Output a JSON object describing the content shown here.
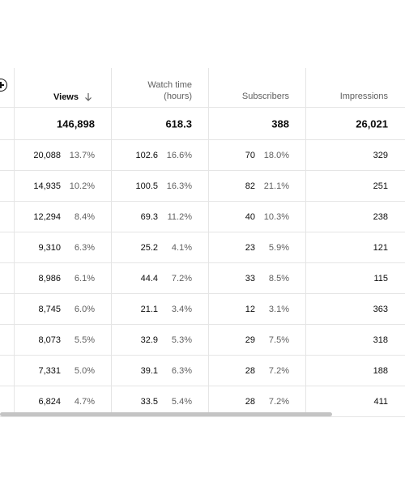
{
  "header": {
    "views_label": "Views",
    "watch_label_line1": "Watch time",
    "watch_label_line2": "(hours)",
    "subscribers_label": "Subscribers",
    "impressions_label": "Impressions"
  },
  "totals": {
    "views": "146,898",
    "watch": "618.3",
    "subscribers": "388",
    "impressions": "26,021"
  },
  "rows": [
    {
      "views": "20,088",
      "views_pct": "13.7%",
      "watch": "102.6",
      "watch_pct": "16.6%",
      "subs": "70",
      "subs_pct": "18.0%",
      "impressions": "329"
    },
    {
      "views": "14,935",
      "views_pct": "10.2%",
      "watch": "100.5",
      "watch_pct": "16.3%",
      "subs": "82",
      "subs_pct": "21.1%",
      "impressions": "251"
    },
    {
      "views": "12,294",
      "views_pct": "8.4%",
      "watch": "69.3",
      "watch_pct": "11.2%",
      "subs": "40",
      "subs_pct": "10.3%",
      "impressions": "238"
    },
    {
      "views": "9,310",
      "views_pct": "6.3%",
      "watch": "25.2",
      "watch_pct": "4.1%",
      "subs": "23",
      "subs_pct": "5.9%",
      "impressions": "121"
    },
    {
      "views": "8,986",
      "views_pct": "6.1%",
      "watch": "44.4",
      "watch_pct": "7.2%",
      "subs": "33",
      "subs_pct": "8.5%",
      "impressions": "115"
    },
    {
      "views": "8,745",
      "views_pct": "6.0%",
      "watch": "21.1",
      "watch_pct": "3.4%",
      "subs": "12",
      "subs_pct": "3.1%",
      "impressions": "363"
    },
    {
      "views": "8,073",
      "views_pct": "5.5%",
      "watch": "32.9",
      "watch_pct": "5.3%",
      "subs": "29",
      "subs_pct": "7.5%",
      "impressions": "318"
    },
    {
      "views": "7,331",
      "views_pct": "5.0%",
      "watch": "39.1",
      "watch_pct": "6.3%",
      "subs": "28",
      "subs_pct": "7.2%",
      "impressions": "188"
    },
    {
      "views": "6,824",
      "views_pct": "4.7%",
      "watch": "33.5",
      "watch_pct": "5.4%",
      "subs": "28",
      "subs_pct": "7.2%",
      "impressions": "411"
    }
  ],
  "icons": {
    "add_column": "plus-circle-icon",
    "sort": "arrow-down-icon"
  },
  "scroll": {
    "horizontal_thumb_fraction": 0.82
  }
}
